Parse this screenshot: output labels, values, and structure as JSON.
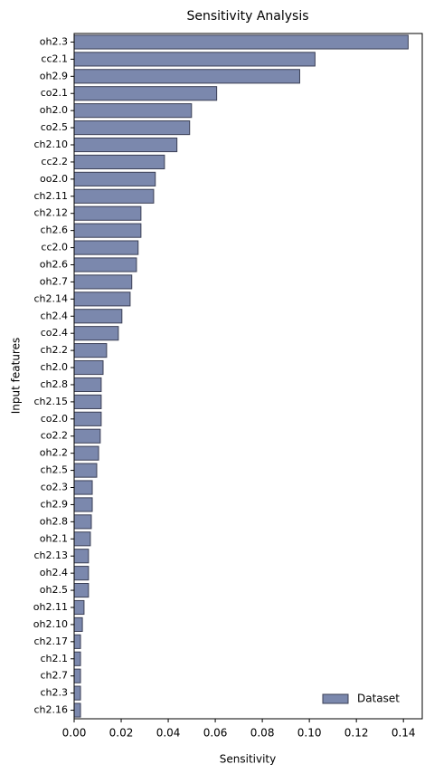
{
  "chart_data": {
    "type": "barh",
    "title": "Sensitivity Analysis",
    "xlabel": "Sensitivity",
    "ylabel": "Input features",
    "categories": [
      "oh2.3",
      "cc2.1",
      "oh2.9",
      "co2.1",
      "oh2.0",
      "co2.5",
      "ch2.10",
      "cc2.2",
      "oo2.0",
      "ch2.11",
      "ch2.12",
      "ch2.6",
      "cc2.0",
      "oh2.6",
      "oh2.7",
      "ch2.14",
      "ch2.4",
      "co2.4",
      "ch2.2",
      "ch2.0",
      "ch2.8",
      "ch2.15",
      "co2.0",
      "co2.2",
      "oh2.2",
      "ch2.5",
      "co2.3",
      "ch2.9",
      "oh2.8",
      "oh2.1",
      "ch2.13",
      "oh2.4",
      "oh2.5",
      "oh2.11",
      "oh2.10",
      "ch2.17",
      "ch2.1",
      "ch2.7",
      "ch2.3",
      "ch2.16"
    ],
    "series": [
      {
        "name": "Dataset",
        "color": "#7b88ad",
        "edgecolor": "#3b3f55",
        "values": [
          0.142,
          0.1024,
          0.0959,
          0.0606,
          0.0499,
          0.0491,
          0.0437,
          0.0384,
          0.0345,
          0.0338,
          0.0284,
          0.0284,
          0.0272,
          0.0265,
          0.0245,
          0.0238,
          0.0203,
          0.0188,
          0.0138,
          0.0123,
          0.0115,
          0.0115,
          0.0115,
          0.0111,
          0.0104,
          0.0096,
          0.0077,
          0.0077,
          0.0073,
          0.0069,
          0.0061,
          0.0061,
          0.0061,
          0.0042,
          0.0035,
          0.0027,
          0.0027,
          0.0027,
          0.0027,
          0.0027
        ]
      }
    ],
    "xlim": [
      0,
      0.148
    ],
    "xticks": [
      {
        "value": 0,
        "label": "0.00"
      },
      {
        "value": 0.02,
        "label": "0.02"
      },
      {
        "value": 0.04,
        "label": "0.04"
      },
      {
        "value": 0.06,
        "label": "0.06"
      },
      {
        "value": 0.08,
        "label": "0.08"
      },
      {
        "value": 0.1,
        "label": "0.10"
      },
      {
        "value": 0.12,
        "label": "0.12"
      },
      {
        "value": 0.14,
        "label": "0.14"
      }
    ],
    "legend": "lower right"
  }
}
